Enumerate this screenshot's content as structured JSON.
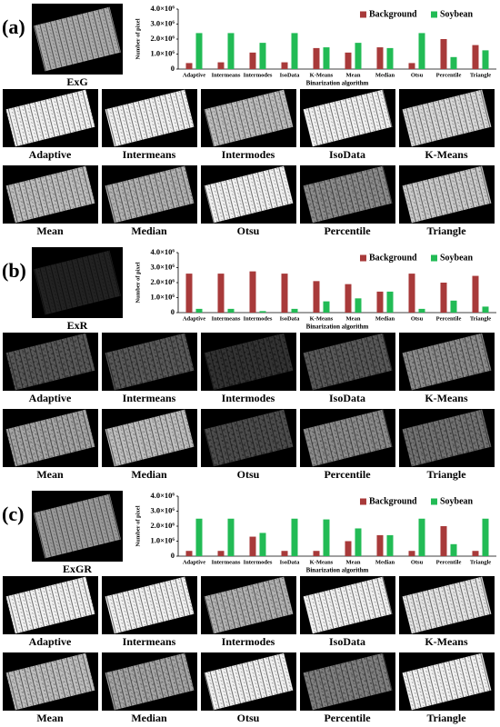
{
  "chart_data": [
    {
      "type": "bar",
      "ylabel": "Number of pixel",
      "xlabel": "Binarization algorithm",
      "categories": [
        "Adaptive",
        "Intermeans",
        "Intermodes",
        "IsoData",
        "K-Means",
        "Mean",
        "Median",
        "Otsu",
        "Percentile",
        "Triangle"
      ],
      "series": [
        {
          "name": "Background",
          "color": "#a83a3a",
          "values": [
            400000,
            450000,
            1100000,
            450000,
            1400000,
            1100000,
            1450000,
            400000,
            2000000,
            1600000
          ]
        },
        {
          "name": "Soybean",
          "color": "#22bb55",
          "values": [
            2400000,
            2400000,
            1750000,
            2400000,
            1450000,
            1750000,
            1400000,
            2400000,
            800000,
            1250000
          ]
        }
      ],
      "ylim": [
        0,
        4000000
      ],
      "yticks": [
        0,
        {
          "value": 1000000,
          "label": "1.0×10⁶"
        },
        {
          "value": 2000000,
          "label": "2.0×10⁶"
        },
        {
          "value": 3000000,
          "label": "3.0×10⁶"
        },
        {
          "value": 4000000,
          "label": "4.0×10⁶"
        }
      ],
      "legend": "upper right"
    },
    {
      "type": "bar",
      "ylabel": "Number of pixel",
      "xlabel": "Binarization algorithm",
      "categories": [
        "Adaptive",
        "Intermeans",
        "Intermodes",
        "IsoData",
        "K-Means",
        "Mean",
        "Median",
        "Otsu",
        "Percentile",
        "Triangle"
      ],
      "series": [
        {
          "name": "Background",
          "color": "#a83a3a",
          "values": [
            2600000,
            2600000,
            2750000,
            2600000,
            2100000,
            1900000,
            1400000,
            2600000,
            2000000,
            2450000
          ]
        },
        {
          "name": "Soybean",
          "color": "#22bb55",
          "values": [
            250000,
            250000,
            100000,
            250000,
            750000,
            950000,
            1400000,
            250000,
            800000,
            400000
          ]
        }
      ],
      "ylim": [
        0,
        4000000
      ],
      "yticks": [
        0,
        {
          "value": 1000000,
          "label": "1.0×10⁶"
        },
        {
          "value": 2000000,
          "label": "2.0×10⁶"
        },
        {
          "value": 3000000,
          "label": "3.0×10⁶"
        },
        {
          "value": 4000000,
          "label": "4.0×10⁶"
        }
      ],
      "legend": "upper right"
    },
    {
      "type": "bar",
      "ylabel": "Number of pixel",
      "xlabel": "Binarization algorithm",
      "categories": [
        "Adaptive",
        "Intermeans",
        "Intermodes",
        "IsoData",
        "K-Means",
        "Mean",
        "Median",
        "Otsu",
        "Percentile",
        "Triangle"
      ],
      "series": [
        {
          "name": "Background",
          "color": "#a83a3a",
          "values": [
            350000,
            350000,
            1300000,
            350000,
            350000,
            1000000,
            1400000,
            350000,
            2000000,
            350000
          ]
        },
        {
          "name": "Soybean",
          "color": "#22bb55",
          "values": [
            2500000,
            2500000,
            1550000,
            2500000,
            2450000,
            1850000,
            1400000,
            2500000,
            800000,
            2500000
          ]
        }
      ],
      "ylim": [
        0,
        4000000
      ],
      "yticks": [
        0,
        {
          "value": 1000000,
          "label": "1.0×10⁶"
        },
        {
          "value": 2000000,
          "label": "2.0×10⁶"
        },
        {
          "value": 3000000,
          "label": "3.0×10⁶"
        },
        {
          "value": 4000000,
          "label": "4.0×10⁶"
        }
      ],
      "legend": "upper right"
    }
  ],
  "panels": [
    {
      "label": "(a)",
      "index_name": "ExG",
      "captions": [
        "Adaptive",
        "Intermeans",
        "Intermodes",
        "IsoData",
        "K-Means",
        "Mean",
        "Median",
        "Otsu",
        "Percentile",
        "Triangle"
      ]
    },
    {
      "label": "(b)",
      "index_name": "ExR",
      "captions": [
        "Adaptive",
        "Intermeans",
        "Intermodes",
        "IsoData",
        "K-Means",
        "Mean",
        "Median",
        "Otsu",
        "Percentile",
        "Triangle"
      ]
    },
    {
      "label": "(c)",
      "index_name": "ExGR",
      "captions": [
        "Adaptive",
        "Intermeans",
        "Intermodes",
        "IsoData",
        "K-Means",
        "Mean",
        "Median",
        "Otsu",
        "Percentile",
        "Triangle"
      ]
    }
  ]
}
